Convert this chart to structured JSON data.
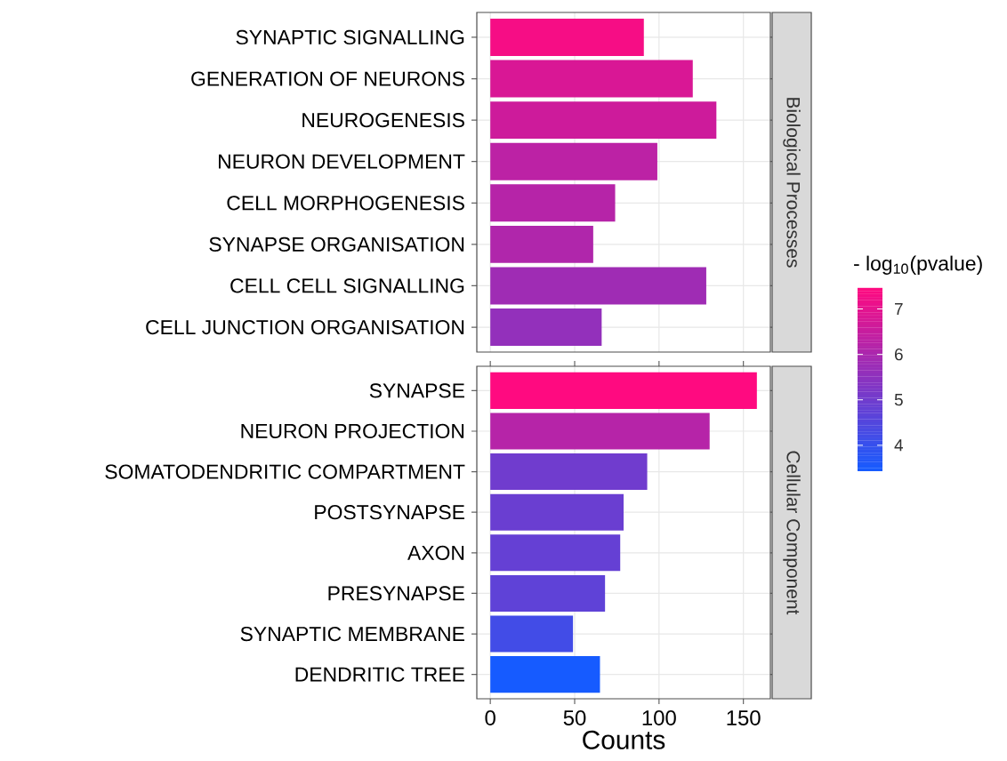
{
  "chart_data": [
    {
      "type": "bar",
      "orientation": "horizontal",
      "annotations": [
        "Biological Processes"
      ],
      "categories": [
        "SYNAPTIC SIGNALLING",
        "GENERATION OF NEURONS",
        "NEUROGENESIS",
        "NEURON DEVELOPMENT",
        "CELL MORPHOGENESIS",
        "SYNAPSE ORGANISATION",
        "CELL CELL SIGNALLING",
        "CELL JUNCTION ORGANISATION"
      ],
      "values": [
        91,
        120,
        134,
        99,
        74,
        61,
        128,
        66
      ],
      "cvalues": [
        7.3,
        6.8,
        6.6,
        6.3,
        6.2,
        6.1,
        5.8,
        5.6
      ],
      "clabel": "- log$_{10}$(pvalue)",
      "clim": [
        3.43,
        7.46
      ],
      "cticks": [
        4,
        5,
        6,
        7
      ],
      "xlim": [
        -8,
        166
      ],
      "xticks": [
        0,
        50,
        100,
        150
      ],
      "tick_labels": "y",
      "grid": true
    },
    {
      "type": "bar",
      "orientation": "horizontal",
      "annotations": [
        "Cellular Component"
      ],
      "categories": [
        "SYNAPSE",
        "NEURON PROJECTION",
        "SOMATODENDRITIC COMPARTMENT",
        "POSTSYNAPSE",
        "AXON",
        "PRESYNAPSE",
        "SYNAPTIC MEMBRANE",
        "DENDRITIC TREE"
      ],
      "values": [
        158,
        130,
        93,
        79,
        77,
        68,
        49,
        65
      ],
      "colors": [
        "#ff0a80",
        "#b624a8",
        "#703cce",
        "#6a3ed1",
        "#6540d4",
        "#5f42d7",
        "#424ce7",
        "#165bff"
      ],
      "xlabel": "Counts",
      "xlim": [
        -8,
        166
      ],
      "xticks": [
        0,
        50,
        100,
        150
      ],
      "grid": true
    }
  ]
}
